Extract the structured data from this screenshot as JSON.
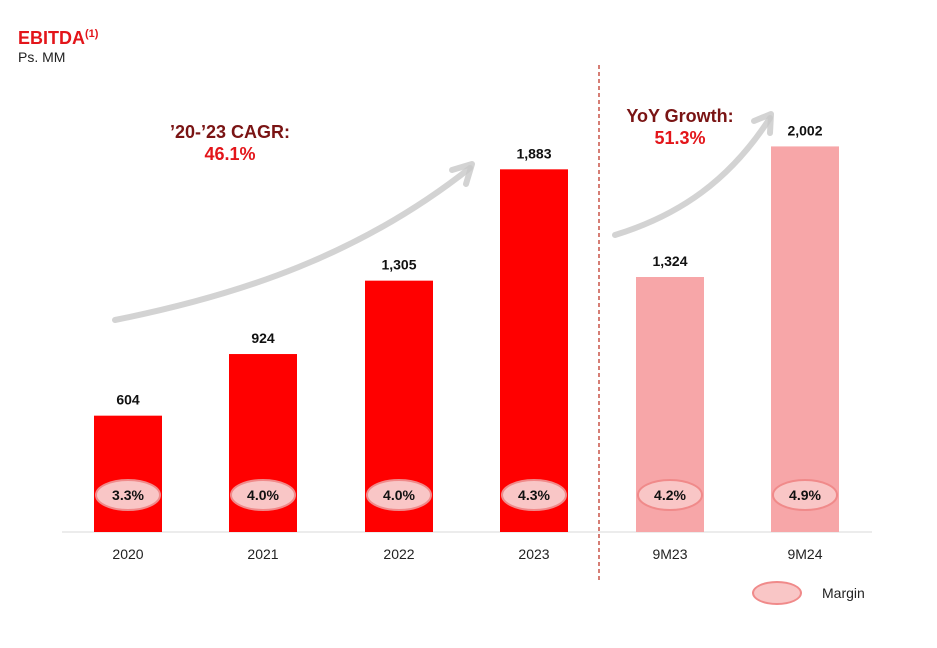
{
  "title": "EBITDA",
  "title_sup": "(1)",
  "subtitle": "Ps. MM",
  "annotations": {
    "cagr_label": "’20-’23 CAGR:",
    "cagr_value": "46.1%",
    "yoy_label": "YoY Growth:",
    "yoy_value": "51.3%"
  },
  "legend": {
    "label": "Margin"
  },
  "colors": {
    "annual_bar": "#ff0000",
    "ytd_bar": "#f7a6a8",
    "margin_fill": "#f9c6c6",
    "margin_stroke": "#f08a8a",
    "divider": "#c0392b",
    "arrow": "#c8c8c8"
  },
  "chart_data": {
    "type": "bar",
    "title": "EBITDA",
    "ylabel": "Ps. MM",
    "categories": [
      "2020",
      "2021",
      "2022",
      "2023",
      "9M23",
      "9M24"
    ],
    "values": [
      604,
      924,
      1305,
      1883,
      1324,
      2002
    ],
    "value_labels": [
      "604",
      "924",
      "1,305",
      "1,883",
      "1,324",
      "2,002"
    ],
    "margins": [
      "3.3%",
      "4.0%",
      "4.0%",
      "4.3%",
      "4.2%",
      "4.9%"
    ],
    "groups": [
      "annual",
      "annual",
      "annual",
      "annual",
      "ytd",
      "ytd"
    ],
    "ylim": [
      0,
      2200
    ]
  }
}
